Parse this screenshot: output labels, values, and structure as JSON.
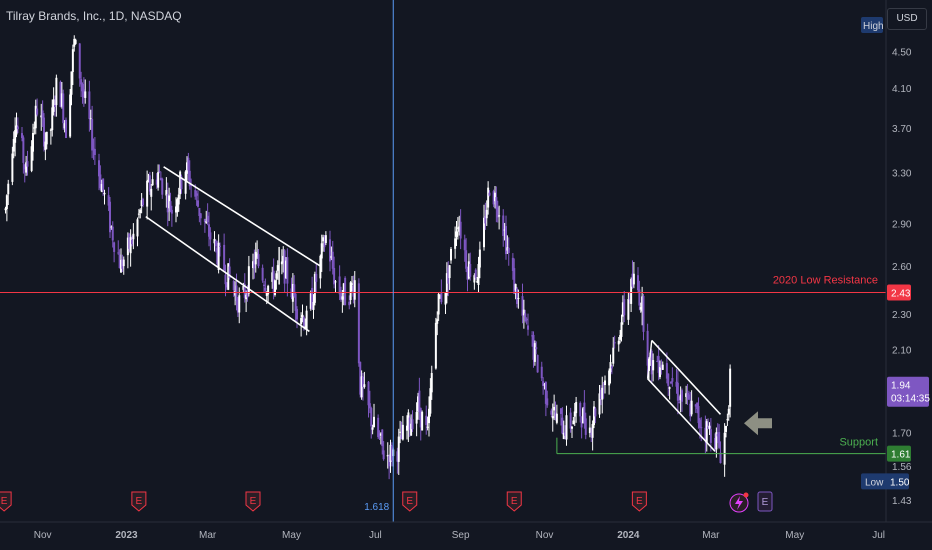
{
  "header": {
    "title": "Tilray Brands, Inc., 1D, NASDAQ",
    "currency": "USD"
  },
  "chart_data": {
    "type": "candlestick",
    "x_ticks": [
      "Nov",
      "2023",
      "Mar",
      "May",
      "Jul",
      "Sep",
      "Nov",
      "2024",
      "Mar",
      "May",
      "Jul"
    ],
    "y_ticks": [
      "4.50",
      "4.10",
      "3.70",
      "3.30",
      "2.90",
      "2.60",
      "2.30",
      "2.10",
      "1.70",
      "1.56",
      "1.43"
    ],
    "ylim": [
      1.38,
      4.85
    ],
    "scale": "log",
    "up_color": "#ffffff",
    "down_color": "#7e57c2",
    "price_path": [
      [
        "2022-10-05",
        3.0
      ],
      [
        "2022-10-12",
        3.8
      ],
      [
        "2022-10-20",
        3.3
      ],
      [
        "2022-10-28",
        3.9
      ],
      [
        "2022-11-05",
        3.5
      ],
      [
        "2022-11-12",
        4.2
      ],
      [
        "2022-11-18",
        3.7
      ],
      [
        "2022-11-24",
        4.6
      ],
      [
        "2022-12-01",
        4.0
      ],
      [
        "2022-12-10",
        3.4
      ],
      [
        "2022-12-20",
        2.9
      ],
      [
        "2022-12-28",
        2.6
      ],
      [
        "2023-01-06",
        2.8
      ],
      [
        "2023-01-14",
        3.1
      ],
      [
        "2023-01-24",
        3.3
      ],
      [
        "2023-02-03",
        3.0
      ],
      [
        "2023-02-13",
        3.35
      ],
      [
        "2023-02-23",
        3.0
      ],
      [
        "2023-03-05",
        2.75
      ],
      [
        "2023-03-15",
        2.55
      ],
      [
        "2023-03-25",
        2.35
      ],
      [
        "2023-04-05",
        2.65
      ],
      [
        "2023-04-15",
        2.45
      ],
      [
        "2023-04-25",
        2.6
      ],
      [
        "2023-05-05",
        2.35
      ],
      [
        "2023-05-12",
        2.25
      ],
      [
        "2023-05-20",
        2.55
      ],
      [
        "2023-05-26",
        2.8
      ],
      [
        "2023-06-03",
        2.45
      ],
      [
        "2023-06-10",
        2.4
      ],
      [
        "2023-06-16",
        2.5
      ],
      [
        "2023-06-20",
        1.92
      ],
      [
        "2023-06-30",
        1.72
      ],
      [
        "2023-07-08",
        1.6
      ],
      [
        "2023-07-16",
        1.62
      ],
      [
        "2023-07-24",
        1.72
      ],
      [
        "2023-08-01",
        1.82
      ],
      [
        "2023-08-08",
        1.68
      ],
      [
        "2023-08-15",
        2.35
      ],
      [
        "2023-08-22",
        2.5
      ],
      [
        "2023-08-30",
        2.95
      ],
      [
        "2023-09-06",
        2.6
      ],
      [
        "2023-09-14",
        2.55
      ],
      [
        "2023-09-22",
        3.2
      ],
      [
        "2023-09-30",
        3.0
      ],
      [
        "2023-10-08",
        2.55
      ],
      [
        "2023-10-15",
        2.3
      ],
      [
        "2023-10-22",
        2.15
      ],
      [
        "2023-11-01",
        1.9
      ],
      [
        "2023-11-10",
        1.75
      ],
      [
        "2023-11-18",
        1.72
      ],
      [
        "2023-11-26",
        1.8
      ],
      [
        "2023-12-04",
        1.72
      ],
      [
        "2023-12-12",
        1.9
      ],
      [
        "2023-12-20",
        2.05
      ],
      [
        "2023-12-28",
        2.3
      ],
      [
        "2024-01-05",
        2.5
      ],
      [
        "2024-01-10",
        2.4
      ],
      [
        "2024-01-16",
        2.02
      ],
      [
        "2024-01-24",
        2.05
      ],
      [
        "2024-02-01",
        1.95
      ],
      [
        "2024-02-09",
        1.85
      ],
      [
        "2024-02-17",
        1.8
      ],
      [
        "2024-02-25",
        1.72
      ],
      [
        "2024-03-03",
        1.7
      ],
      [
        "2024-03-08",
        1.62
      ],
      [
        "2024-03-12",
        1.72
      ],
      [
        "2024-03-15",
        1.94
      ]
    ],
    "annotations": [
      {
        "label": "2020 Low Resistance",
        "value": 2.43,
        "price_tag": "2.43",
        "color": "#f23645"
      },
      {
        "label": "Support",
        "value": 1.61,
        "price_tag": "1.61",
        "color": "#4caf50"
      },
      {
        "label": "1.618",
        "date": "2023-07-14",
        "color": "#5b9cf6"
      }
    ],
    "price_tags": {
      "high_label": "High",
      "low_label": "Low",
      "low_value": "1.50",
      "last": "1.94",
      "countdown": "03:14:35"
    },
    "event_marker_label": "E"
  }
}
